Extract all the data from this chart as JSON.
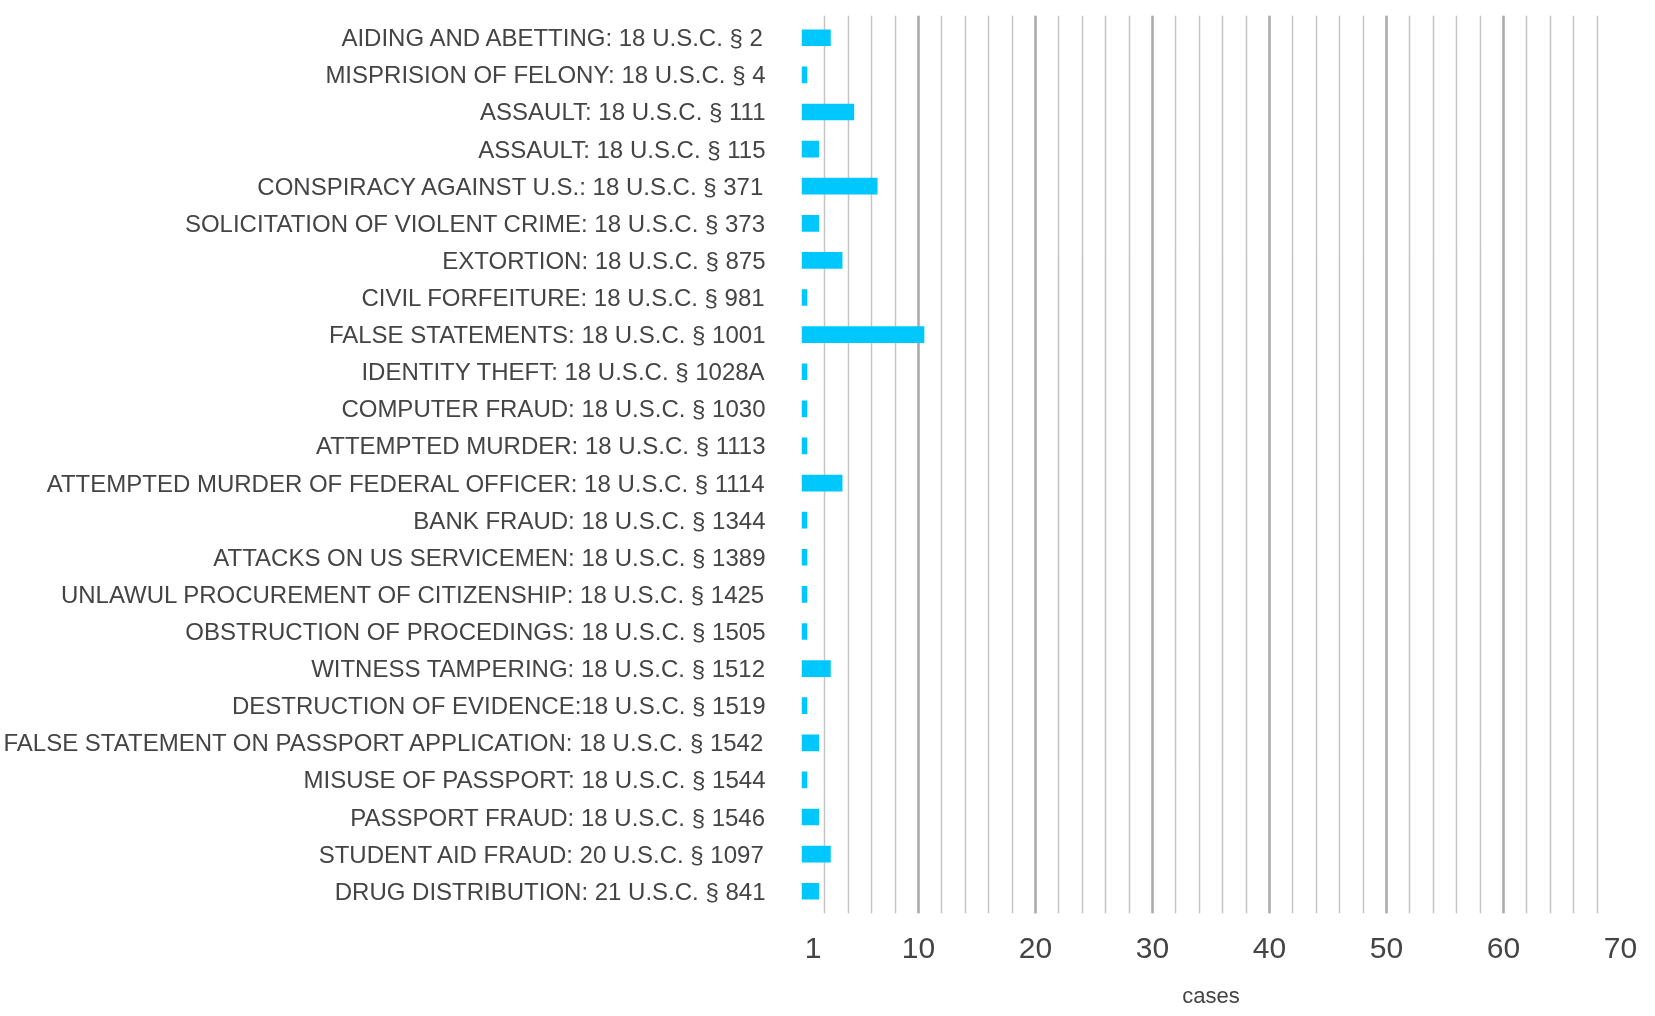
{
  "chart_data": {
    "type": "bar",
    "orientation": "horizontal",
    "xlabel": "cases",
    "categories": [
      "AIDING AND ABETTING: 18 U.S.C. § 2",
      "MISPRISION OF FELONY: 18 U.S.C. § 4",
      "ASSAULT: 18 U.S.C. § 111",
      "ASSAULT: 18 U.S.C. § 115",
      "CONSPIRACY AGAINST U.S.: 18 U.S.C. § 371",
      "SOLICITATION OF VIOLENT CRIME: 18 U.S.C. § 373",
      "EXTORTION: 18 U.S.C. § 875",
      "CIVIL FORFEITURE: 18 U.S.C. § 981",
      "FALSE STATEMENTS: 18 U.S.C. § 1001",
      "IDENTITY THEFT: 18 U.S.C. § 1028A",
      "COMPUTER FRAUD: 18 U.S.C. § 1030",
      "ATTEMPTED MURDER: 18 U.S.C. § 1113",
      "ATTEMPTED MURDER OF FEDERAL OFFICER: 18 U.S.C. § 1114",
      "BANK FRAUD: 18 U.S.C. § 1344",
      "ATTACKS ON US SERVICEMEN: 18 U.S.C. § 1389",
      "UNLAWUL PROCUREMENT OF CITIZENSHIP: 18 U.S.C. § 1425",
      "OBSTRUCTION OF PROCEDINGS: 18 U.S.C. § 1505",
      "WITNESS TAMPERING: 18 U.S.C. § 1512",
      "DESTRUCTION OF EVIDENCE:18 U.S.C. § 1519",
      "FALSE STATEMENT ON PASSPORT APPLICATION: 18 U.S.C. § 1542",
      "MISUSE OF PASSPORT: 18 U.S.C. § 1544",
      "PASSPORT FRAUD: 18 U.S.C. § 1546",
      "STUDENT AID FRAUD: 20 U.S.C. § 1097",
      "DRUG DISTRIBUTION: 21 U.S.C. § 841"
    ],
    "values": [
      2.5,
      0.5,
      4.5,
      1.5,
      6.5,
      1.5,
      3.5,
      0.5,
      10.5,
      0.5,
      0.5,
      0.5,
      3.5,
      0.5,
      0.5,
      0.5,
      0.5,
      2.5,
      0.5,
      1.5,
      0.5,
      1.5,
      2.5,
      1.5
    ],
    "color": "#00c8ff",
    "xlim": [
      0,
      70
    ],
    "xticks": [
      1,
      10,
      20,
      30,
      40,
      50,
      60,
      70
    ],
    "grid": "x"
  }
}
